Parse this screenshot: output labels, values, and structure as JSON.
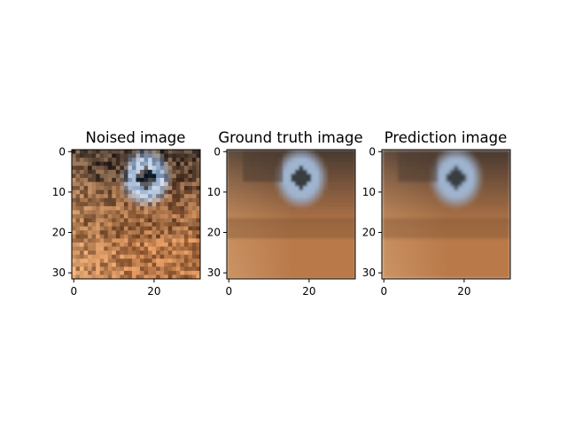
{
  "figure": {
    "panel_titles": [
      "Noised image",
      "Ground truth image",
      "Prediction image"
    ]
  },
  "chart_data": [
    {
      "type": "heatmap",
      "title": "Noised image",
      "grid": false,
      "xlim": [
        -0.5,
        31.5
      ],
      "ylim": [
        31.5,
        -0.5
      ],
      "xticks": [
        0,
        20
      ],
      "yticks": [
        0,
        10,
        20,
        30
      ],
      "image_size": [
        32,
        32
      ],
      "content": "noisy 32x32 RGB photo crop: brown/orange fur with dark patches, pale blue-grey patch with dark center upper-right"
    },
    {
      "type": "heatmap",
      "title": "Ground truth image",
      "grid": false,
      "xlim": [
        -0.5,
        31.5
      ],
      "ylim": [
        31.5,
        -0.5
      ],
      "xticks": [
        0,
        20
      ],
      "yticks": [
        0,
        10,
        20,
        30
      ],
      "image_size": [
        32,
        32
      ],
      "content": "clean 32x32 RGB photo crop of same scene"
    },
    {
      "type": "heatmap",
      "title": "Prediction image",
      "grid": false,
      "xlim": [
        -0.5,
        31.5
      ],
      "ylim": [
        31.5,
        -0.5
      ],
      "xticks": [
        0,
        20
      ],
      "yticks": [
        0,
        10,
        20,
        30
      ],
      "image_size": [
        32,
        32
      ],
      "content": "denoised 32x32 RGB prediction, slightly blurrier than ground truth"
    }
  ],
  "colors": {
    "fur_light": "#d9a878",
    "fur_mid": "#b9794a",
    "fur_dark": "#6e4a2e",
    "shadow": "#4a3a30",
    "patch_blue": "#9fb4cf",
    "patch_dark": "#1e1e1e",
    "axis": "#000000"
  }
}
